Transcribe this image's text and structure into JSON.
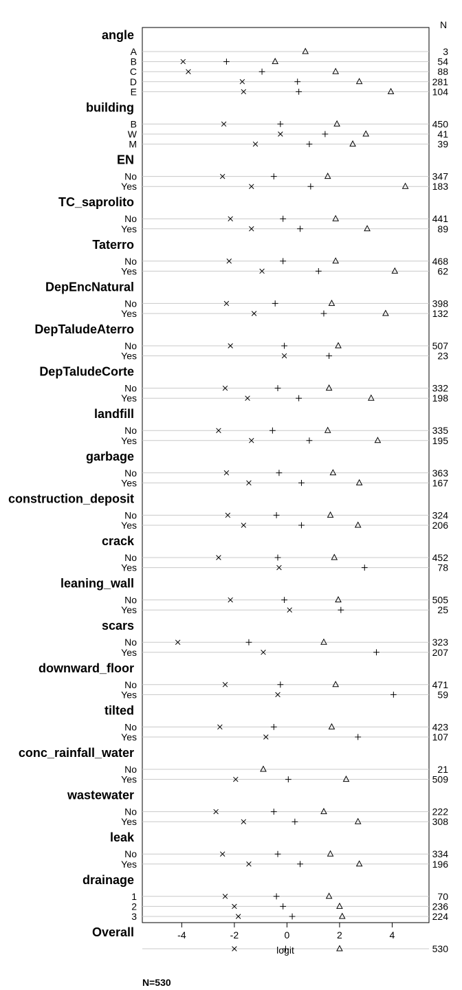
{
  "chart_data": {
    "type": "dotplot",
    "xlabel": "logit",
    "n_header": "N",
    "footnote": "N=530",
    "xlim": [
      -5.5,
      5.4
    ],
    "x_ticks": [
      -4,
      -2,
      0,
      2,
      4
    ],
    "x_tick_labels": [
      "-4",
      "-2",
      "0",
      "2",
      "4"
    ],
    "legend": "none",
    "grid": "horizontal reference lines per level",
    "series": [
      {
        "symbol": "x"
      },
      {
        "symbol": "+"
      },
      {
        "symbol": "triangle"
      }
    ],
    "groups": [
      {
        "name": "angle",
        "levels": [
          {
            "label": "A",
            "n": "3",
            "values": [
              null,
              null,
              0.7
            ]
          },
          {
            "label": "B",
            "n": "54",
            "values": [
              -3.95,
              -2.3,
              -0.45
            ]
          },
          {
            "label": "C",
            "n": "88",
            "values": [
              -3.75,
              -0.95,
              1.85
            ]
          },
          {
            "label": "D",
            "n": "281",
            "values": [
              -1.7,
              0.4,
              2.75
            ]
          },
          {
            "label": "E",
            "n": "104",
            "values": [
              -1.65,
              0.45,
              3.95
            ]
          }
        ]
      },
      {
        "name": "building",
        "levels": [
          {
            "label": "B",
            "n": "450",
            "values": [
              -2.4,
              -0.25,
              1.9
            ]
          },
          {
            "label": "W",
            "n": "41",
            "values": [
              -0.25,
              1.45,
              3.0
            ]
          },
          {
            "label": "M",
            "n": "39",
            "values": [
              -1.2,
              0.85,
              2.5
            ]
          }
        ]
      },
      {
        "name": "EN",
        "levels": [
          {
            "label": "No",
            "n": "347",
            "values": [
              -2.45,
              -0.5,
              1.55
            ]
          },
          {
            "label": "Yes",
            "n": "183",
            "values": [
              -1.35,
              0.9,
              4.5
            ]
          }
        ]
      },
      {
        "name": "TC_saprolito",
        "levels": [
          {
            "label": "No",
            "n": "441",
            "values": [
              -2.15,
              -0.15,
              1.85
            ]
          },
          {
            "label": "Yes",
            "n": "89",
            "values": [
              -1.35,
              0.5,
              3.05
            ]
          }
        ]
      },
      {
        "name": "Taterro",
        "levels": [
          {
            "label": "No",
            "n": "468",
            "values": [
              -2.2,
              -0.15,
              1.85
            ]
          },
          {
            "label": "Yes",
            "n": "62",
            "values": [
              -0.95,
              1.2,
              4.1
            ]
          }
        ]
      },
      {
        "name": "DepEncNatural",
        "levels": [
          {
            "label": "No",
            "n": "398",
            "values": [
              -2.3,
              -0.45,
              1.7
            ]
          },
          {
            "label": "Yes",
            "n": "132",
            "values": [
              -1.25,
              1.4,
              3.75
            ]
          }
        ]
      },
      {
        "name": "DepTaludeAterro",
        "levels": [
          {
            "label": "No",
            "n": "507",
            "values": [
              -2.15,
              -0.1,
              1.95
            ]
          },
          {
            "label": "Yes",
            "n": "23",
            "values": [
              -0.1,
              1.6,
              null
            ]
          }
        ]
      },
      {
        "name": "DepTaludeCorte",
        "levels": [
          {
            "label": "No",
            "n": "332",
            "values": [
              -2.35,
              -0.35,
              1.6
            ]
          },
          {
            "label": "Yes",
            "n": "198",
            "values": [
              -1.5,
              0.45,
              3.2
            ]
          }
        ]
      },
      {
        "name": "landfill",
        "levels": [
          {
            "label": "No",
            "n": "335",
            "values": [
              -2.6,
              -0.55,
              1.55
            ]
          },
          {
            "label": "Yes",
            "n": "195",
            "values": [
              -1.35,
              0.85,
              3.45
            ]
          }
        ]
      },
      {
        "name": "garbage",
        "levels": [
          {
            "label": "No",
            "n": "363",
            "values": [
              -2.3,
              -0.3,
              1.75
            ]
          },
          {
            "label": "Yes",
            "n": "167",
            "values": [
              -1.45,
              0.55,
              2.75
            ]
          }
        ]
      },
      {
        "name": "construction_deposit",
        "levels": [
          {
            "label": "No",
            "n": "324",
            "values": [
              -2.25,
              -0.4,
              1.65
            ]
          },
          {
            "label": "Yes",
            "n": "206",
            "values": [
              -1.65,
              0.55,
              2.7
            ]
          }
        ]
      },
      {
        "name": "crack",
        "levels": [
          {
            "label": "No",
            "n": "452",
            "values": [
              -2.6,
              -0.35,
              1.8
            ]
          },
          {
            "label": "Yes",
            "n": "78",
            "values": [
              -0.3,
              2.95,
              null
            ]
          }
        ]
      },
      {
        "name": "leaning_wall",
        "levels": [
          {
            "label": "No",
            "n": "505",
            "values": [
              -2.15,
              -0.1,
              1.95
            ]
          },
          {
            "label": "Yes",
            "n": "25",
            "values": [
              0.1,
              2.05,
              null
            ]
          }
        ]
      },
      {
        "name": "scars",
        "levels": [
          {
            "label": "No",
            "n": "323",
            "values": [
              -4.15,
              -1.45,
              1.4
            ]
          },
          {
            "label": "Yes",
            "n": "207",
            "values": [
              -0.9,
              3.4,
              null
            ]
          }
        ]
      },
      {
        "name": "downward_floor",
        "levels": [
          {
            "label": "No",
            "n": "471",
            "values": [
              -2.35,
              -0.25,
              1.85
            ]
          },
          {
            "label": "Yes",
            "n": "59",
            "values": [
              -0.35,
              4.05,
              null
            ]
          }
        ]
      },
      {
        "name": "tilted",
        "levels": [
          {
            "label": "No",
            "n": "423",
            "values": [
              -2.55,
              -0.5,
              1.7
            ]
          },
          {
            "label": "Yes",
            "n": "107",
            "values": [
              -0.8,
              2.7,
              null
            ]
          }
        ]
      },
      {
        "name": "conc_rainfall_water",
        "levels": [
          {
            "label": "No",
            "n": "21",
            "values": [
              null,
              null,
              -0.9
            ]
          },
          {
            "label": "Yes",
            "n": "509",
            "values": [
              -1.95,
              0.05,
              2.25
            ]
          }
        ]
      },
      {
        "name": "wastewater",
        "levels": [
          {
            "label": "No",
            "n": "222",
            "values": [
              -2.7,
              -0.5,
              1.4
            ]
          },
          {
            "label": "Yes",
            "n": "308",
            "values": [
              -1.65,
              0.3,
              2.7
            ]
          }
        ]
      },
      {
        "name": "leak",
        "levels": [
          {
            "label": "No",
            "n": "334",
            "values": [
              -2.45,
              -0.35,
              1.65
            ]
          },
          {
            "label": "Yes",
            "n": "196",
            "values": [
              -1.45,
              0.5,
              2.75
            ]
          }
        ]
      },
      {
        "name": "drainage",
        "levels": [
          {
            "label": "1",
            "n": "70",
            "values": [
              -2.35,
              -0.4,
              1.6
            ]
          },
          {
            "label": "2",
            "n": "236",
            "values": [
              -2.0,
              -0.15,
              2.0
            ]
          },
          {
            "label": "3",
            "n": "224",
            "values": [
              -1.85,
              0.2,
              2.1
            ]
          }
        ]
      },
      {
        "name": "Overall",
        "levels": [
          {
            "label": "",
            "n": "530",
            "values": [
              -2.0,
              -0.05,
              2.0
            ]
          }
        ]
      }
    ]
  }
}
